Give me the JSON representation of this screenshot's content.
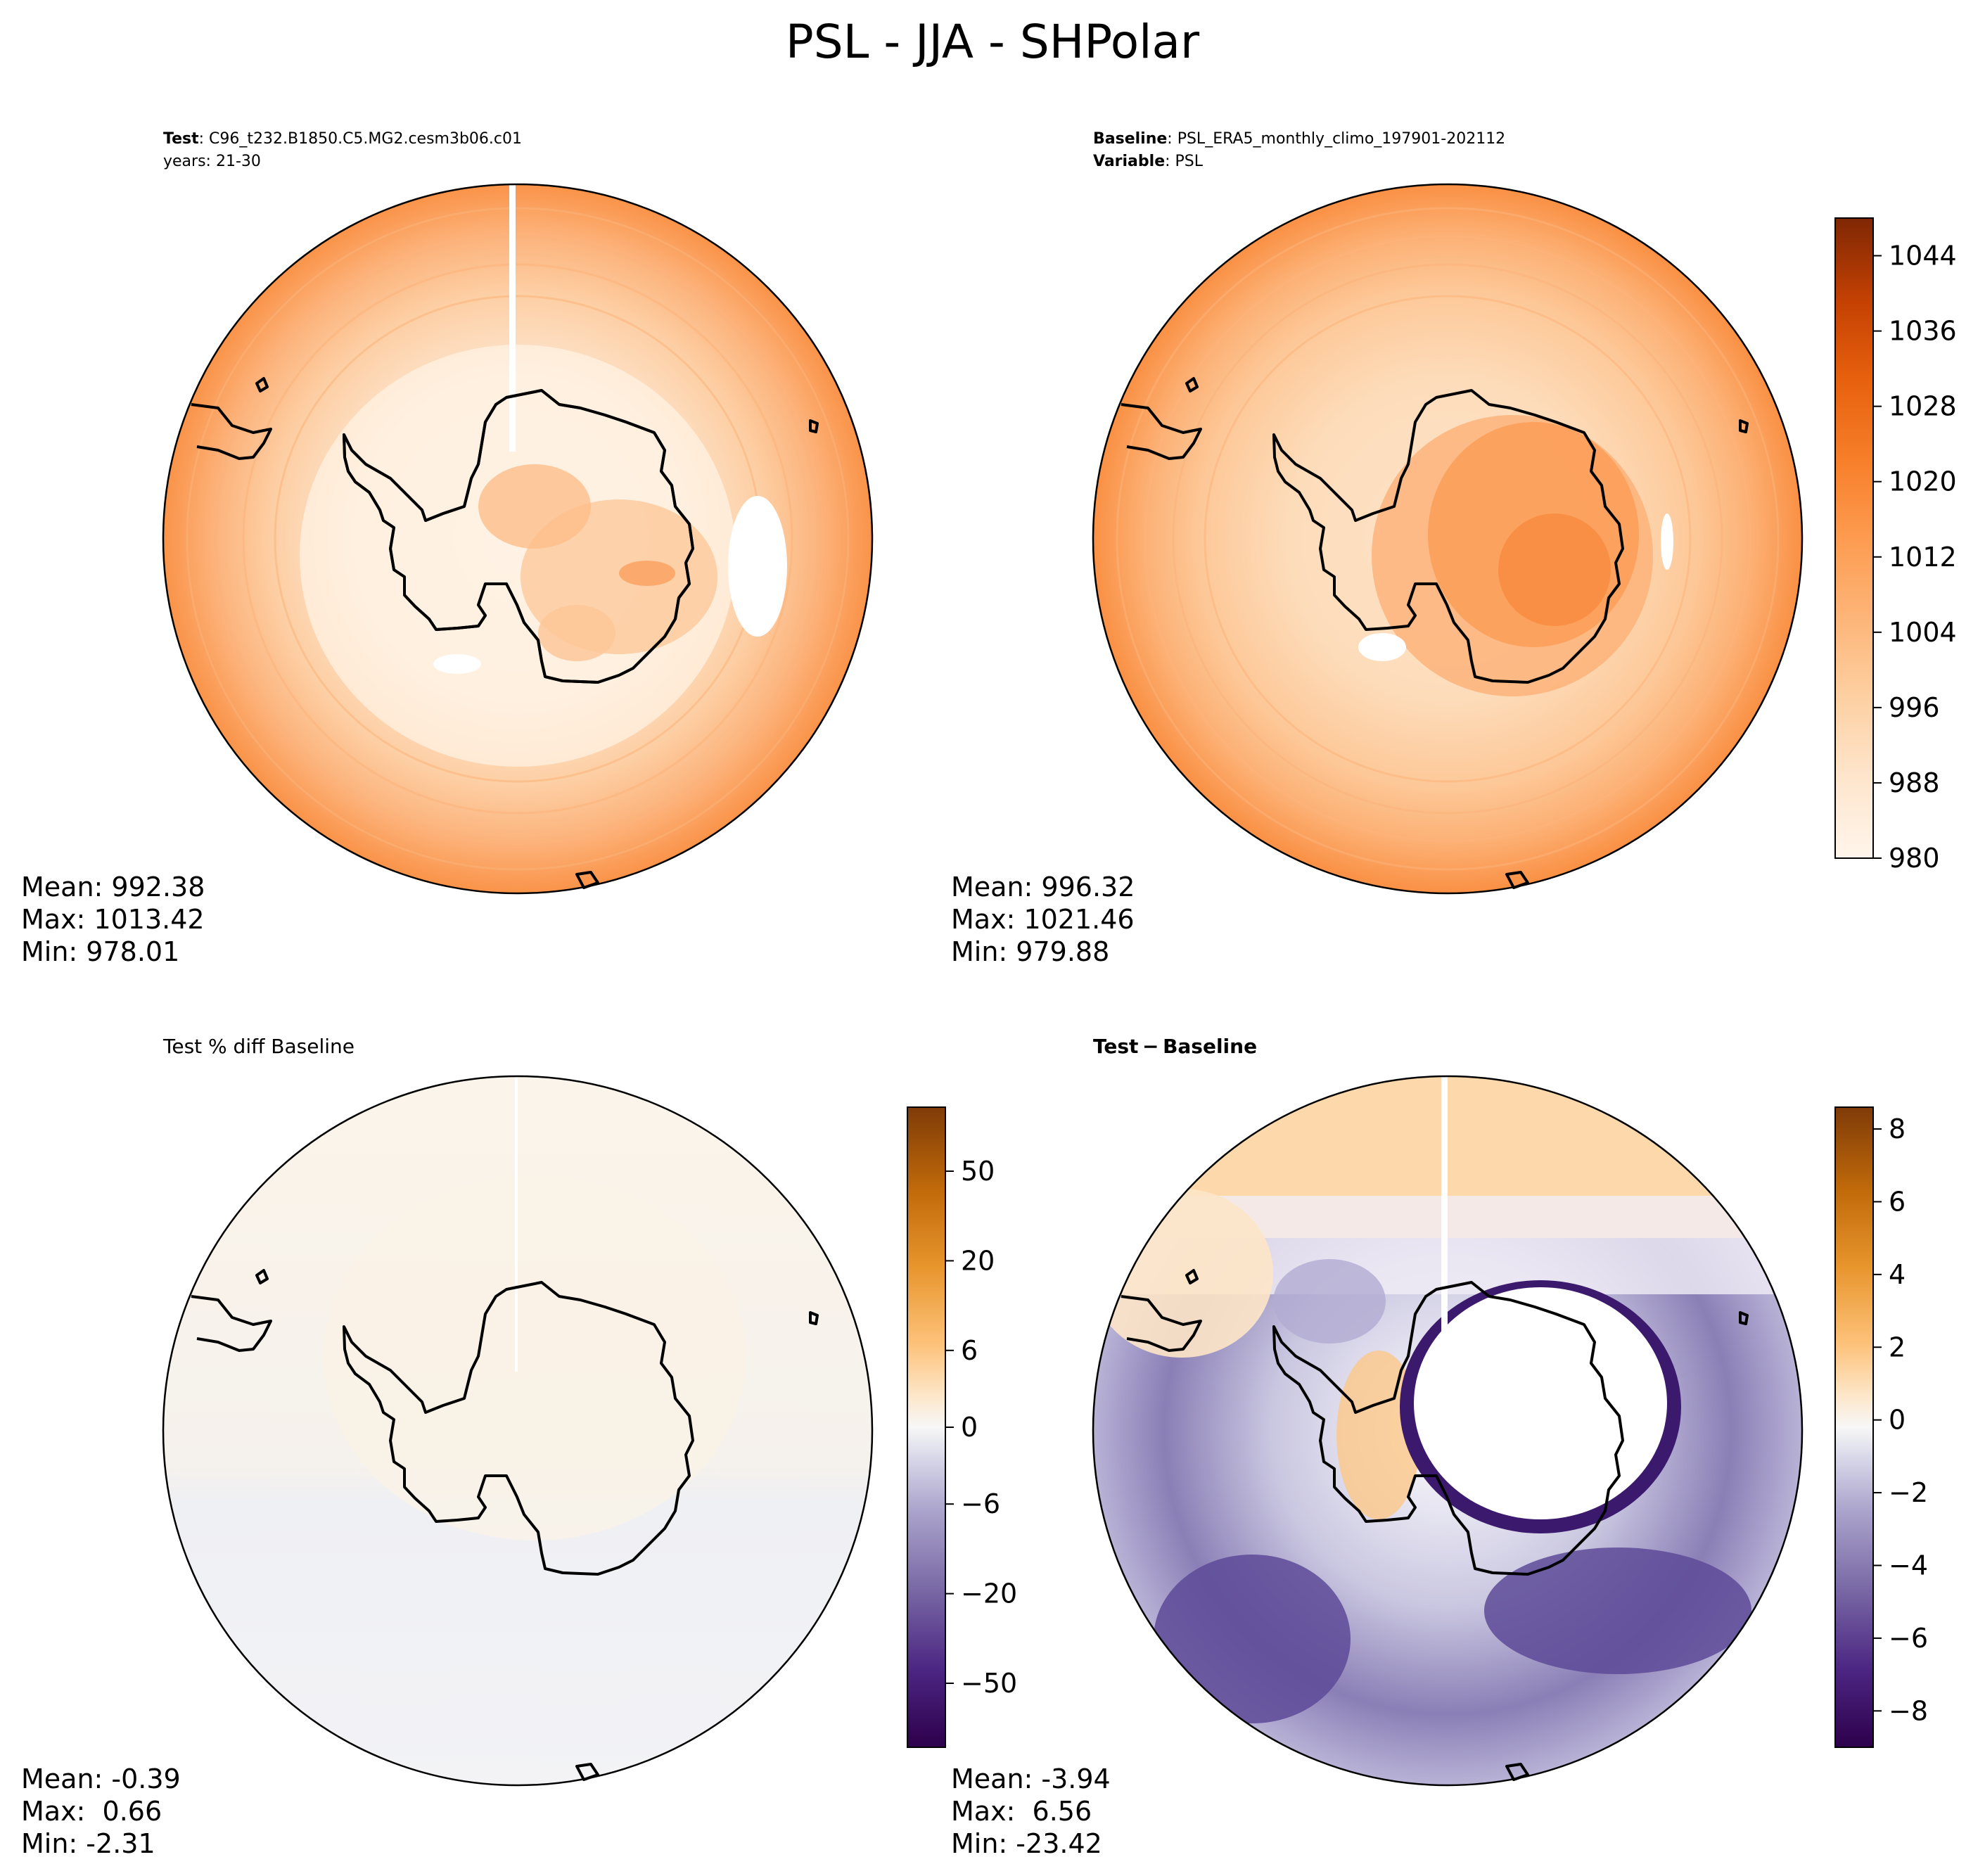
{
  "title": "PSL - JJA - SHPolar",
  "panels": [
    {
      "id": "test",
      "heading_lines": [
        {
          "bold": "Test",
          "text": ": C96_t232.B1850.C5.MG2.cesm3b06.c01"
        },
        {
          "bold": "",
          "text": "years: 21-30"
        }
      ],
      "stats": {
        "mean": "Mean: 992.38",
        "max": "Max: 1013.42",
        "min": "Min: 978.01"
      }
    },
    {
      "id": "baseline",
      "heading_lines": [
        {
          "bold": "Baseline",
          "text": ": PSL_ERA5_monthly_climo_197901-202112"
        },
        {
          "bold": "Variable",
          "text": ": PSL"
        }
      ],
      "stats": {
        "mean": "Mean: 996.32",
        "max": "Max: 1021.46",
        "min": "Min: 979.88"
      }
    },
    {
      "id": "pct_diff",
      "heading_lines": [
        {
          "bold": "",
          "text": "Test % diff Baseline"
        }
      ],
      "stats": {
        "mean": "Mean: -0.39",
        "max": "Max:  0.66",
        "min": "Min: -2.31"
      }
    },
    {
      "id": "diff",
      "heading_lines": [
        {
          "bold": "Test − Baseline",
          "text": ""
        }
      ],
      "stats": {
        "mean": "Mean: -3.94",
        "max": "Max:  6.56",
        "min": "Min: -23.42"
      }
    }
  ],
  "chart_data": [
    {
      "type": "heatmap",
      "panel": "test",
      "projection": "south-polar-stereographic",
      "variable": "PSL",
      "range": [
        980,
        1048
      ],
      "colormap": "oranges",
      "colorbar": "baseline"
    },
    {
      "type": "heatmap",
      "panel": "baseline",
      "projection": "south-polar-stereographic",
      "variable": "PSL",
      "range": [
        980,
        1048
      ],
      "colormap": "oranges",
      "colorbar": {
        "ticks": [
          "980",
          "988",
          "996",
          "1004",
          "1012",
          "1020",
          "1028",
          "1036",
          "1044"
        ],
        "tick_values": [
          980,
          988,
          996,
          1004,
          1012,
          1020,
          1028,
          1036,
          1044
        ],
        "range": [
          980,
          1048
        ],
        "levels": 17,
        "colors": [
          "#fff5eb",
          "#fee8d3",
          "#fdd9b4",
          "#fdc28c",
          "#fda762",
          "#fb8d3d",
          "#f2701d",
          "#e25609",
          "#c44103",
          "#9f3303",
          "#7f2704"
        ]
      }
    },
    {
      "type": "heatmap",
      "panel": "pct_diff",
      "projection": "south-polar-stereographic",
      "variable": "PSL % diff",
      "colorbar": {
        "ticks": [
          "−50",
          "−20",
          "−6",
          "0",
          "6",
          "20",
          "50"
        ],
        "levels": 24,
        "colors": [
          "#2d004b",
          "#542788",
          "#8073ac",
          "#b2abd2",
          "#d8daeb",
          "#f7f7f7",
          "#fee0b6",
          "#fdb863",
          "#e08214",
          "#b35806",
          "#7f3b08"
        ]
      }
    },
    {
      "type": "heatmap",
      "panel": "diff",
      "projection": "south-polar-stereographic",
      "variable": "PSL difference",
      "colorbar": {
        "ticks": [
          "−8",
          "−6",
          "−4",
          "−2",
          "0",
          "2",
          "4",
          "6",
          "8"
        ],
        "tick_values": [
          -8,
          -6,
          -4,
          -2,
          0,
          2,
          4,
          6,
          8
        ],
        "range": [
          -9,
          8.6
        ],
        "levels": 26,
        "colors": [
          "#2d004b",
          "#542788",
          "#8073ac",
          "#b2abd2",
          "#d8daeb",
          "#f7f7f7",
          "#fee0b6",
          "#fdb863",
          "#e08214",
          "#b35806",
          "#7f3b08"
        ]
      }
    }
  ]
}
